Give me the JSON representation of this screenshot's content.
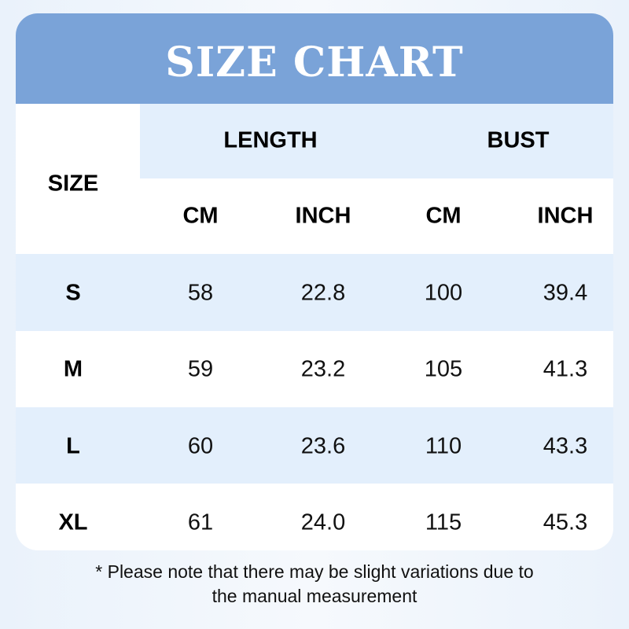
{
  "title": "SIZE CHART",
  "headers": {
    "size": "SIZE",
    "length": "LENGTH",
    "bust": "BUST",
    "units": [
      "CM",
      "INCH",
      "CM",
      "INCH"
    ]
  },
  "rows": [
    {
      "size": "S",
      "length_cm": "58",
      "length_inch": "22.8",
      "bust_cm": "100",
      "bust_inch": "39.4"
    },
    {
      "size": "M",
      "length_cm": "59",
      "length_inch": "23.2",
      "bust_cm": "105",
      "bust_inch": "41.3"
    },
    {
      "size": "L",
      "length_cm": "60",
      "length_inch": "23.6",
      "bust_cm": "110",
      "bust_inch": "43.3"
    },
    {
      "size": "XL",
      "length_cm": "61",
      "length_inch": "24.0",
      "bust_cm": "115",
      "bust_inch": "45.3"
    }
  ],
  "note_line1": "* Please note that there may be slight variations due to",
  "note_line2": "the manual measurement",
  "colors": {
    "header": "#7aa3d8",
    "stripe": "#e3effc",
    "background": "#eef4fb"
  }
}
